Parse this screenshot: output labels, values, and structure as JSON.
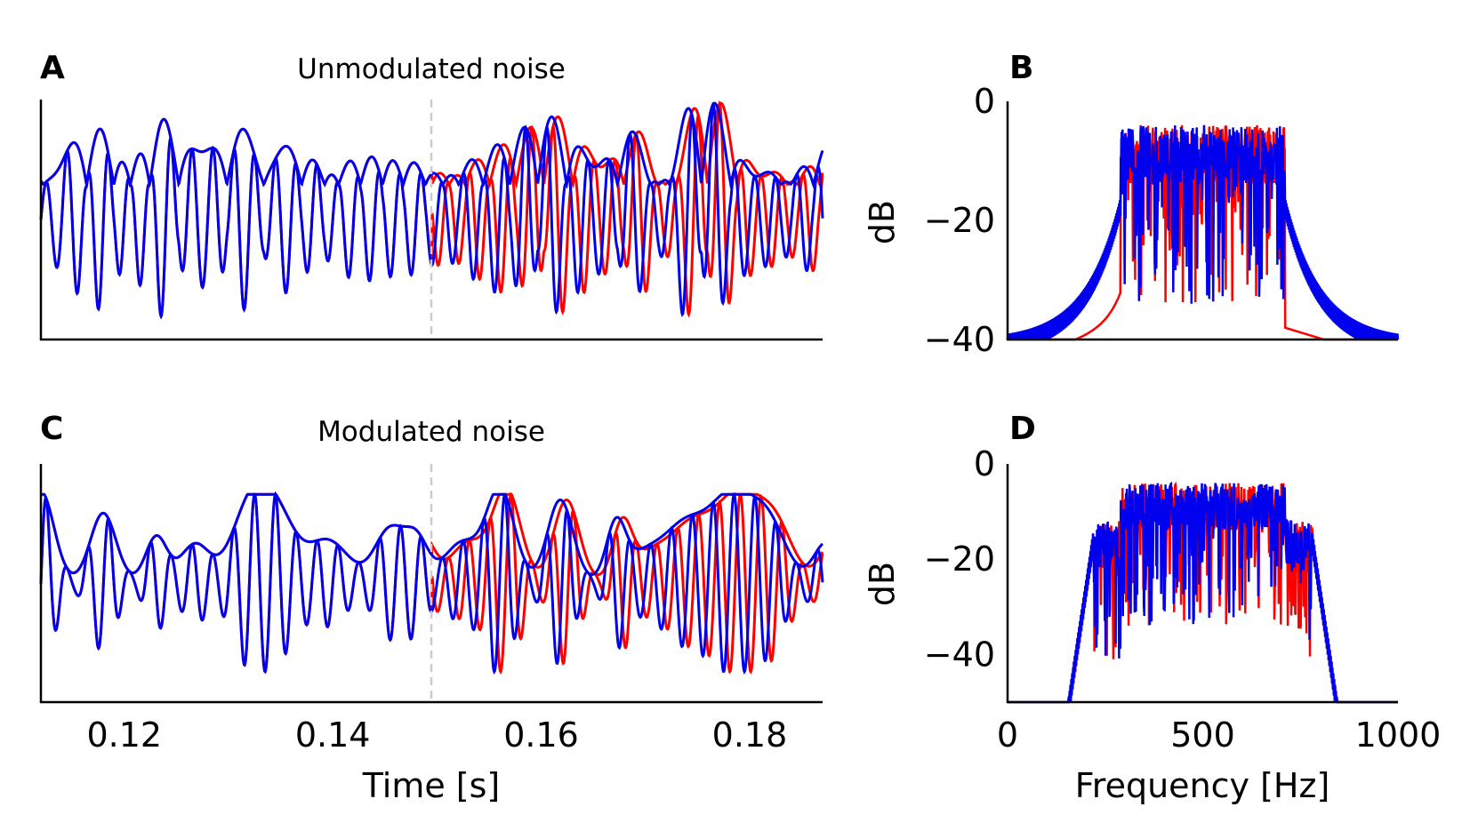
{
  "colors": {
    "red": "#ff0000",
    "blue": "#0000ee",
    "axis": "#000000",
    "marker": "#cccccc"
  },
  "chart_data": [
    {
      "id": "A",
      "type": "line",
      "letter": "A",
      "title": "Unmodulated noise",
      "xlabel": "",
      "ylabel": "",
      "xlim": [
        0.112,
        0.187
      ],
      "ylim": [
        -1.2,
        1.2
      ],
      "marker_x": 0.1495,
      "x_ticks": [],
      "y_ticks": [],
      "series": [
        {
          "color": "red",
          "kind": "waveform",
          "seed": 11,
          "envelope_type": "noise",
          "amp": 1.0,
          "shift_after": 0.0006
        },
        {
          "color": "blue",
          "kind": "waveform",
          "seed": 11,
          "envelope_type": "noise",
          "amp": 1.0,
          "shift_after": 0
        }
      ]
    },
    {
      "id": "B",
      "type": "line",
      "letter": "B",
      "title": "",
      "xlabel": "",
      "ylabel": "dB",
      "xlim": [
        0,
        1000
      ],
      "ylim": [
        -40,
        0
      ],
      "y_ticks": [
        0,
        -20,
        -40
      ],
      "x_ticks": [],
      "series": [
        {
          "color": "red",
          "kind": "spectrum",
          "band": [
            290,
            710
          ],
          "skirt": "sharp"
        },
        {
          "color": "blue",
          "kind": "spectrum",
          "band": [
            290,
            710
          ],
          "skirt": "wide"
        }
      ]
    },
    {
      "id": "C",
      "type": "line",
      "letter": "C",
      "title": "Modulated noise",
      "xlabel": "Time [s]",
      "ylabel": "",
      "xlim": [
        0.112,
        0.187
      ],
      "ylim": [
        -1.2,
        1.2
      ],
      "marker_x": 0.1495,
      "x_ticks": [
        "0.12",
        "0.14",
        "0.16",
        "0.18"
      ],
      "y_ticks": [],
      "series": [
        {
          "color": "red",
          "kind": "waveform",
          "seed": 29,
          "envelope_type": "bursts",
          "amp": 0.85,
          "shift_after": 0.0006
        },
        {
          "color": "blue",
          "kind": "waveform",
          "seed": 29,
          "envelope_type": "bursts",
          "amp": 0.85,
          "shift_after": 0
        }
      ]
    },
    {
      "id": "D",
      "type": "line",
      "letter": "D",
      "title": "",
      "xlabel": "Frequency [Hz]",
      "ylabel": "dB",
      "xlim": [
        0,
        1000
      ],
      "ylim": [
        -50,
        0
      ],
      "y_ticks": [
        0,
        -20,
        -40
      ],
      "x_ticks": [
        "0",
        "500",
        "1000"
      ],
      "series": [
        {
          "color": "red",
          "kind": "spectrum",
          "band": [
            220,
            780
          ],
          "inner_band": [
            290,
            710
          ],
          "skirt": "medium"
        },
        {
          "color": "blue",
          "kind": "spectrum",
          "band": [
            220,
            780
          ],
          "inner_band": [
            290,
            710
          ],
          "skirt": "medium"
        }
      ]
    }
  ]
}
